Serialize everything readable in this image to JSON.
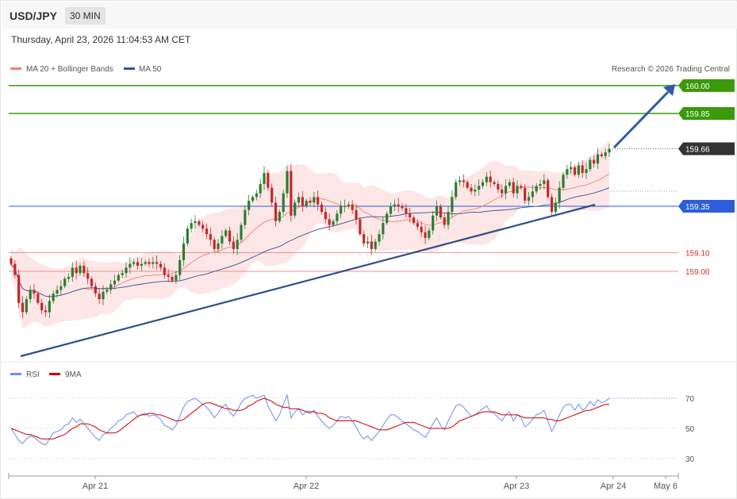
{
  "header": {
    "symbol": "USD/JPY",
    "timeframe": "30 MIN"
  },
  "timestamp": "Thursday, April 23, 2026 11:04:53 AM CET",
  "legend": {
    "ma20": {
      "label": "MA 20 + Bollinger Bands",
      "color": "#f08080"
    },
    "ma50": {
      "label": "MA 50",
      "color": "#2f5597"
    }
  },
  "copyright": "Research © 2026 Trading Central",
  "colors": {
    "up": "#2e7d32",
    "down": "#c62828",
    "target": "#3a9a0a",
    "pivot": "#2b5fd9",
    "support": "#e57373",
    "trend": "#2f4f8a"
  },
  "chart_data": [
    {
      "type": "candlestick",
      "title": "",
      "ylim": [
        158.8,
        160.05
      ],
      "x_ticks": [
        "Apr 21",
        "Apr 22",
        "Apr 23",
        "Apr 24",
        "May 6"
      ],
      "levels": [
        {
          "value": 160.0,
          "label": "160.00",
          "kind": "target"
        },
        {
          "value": 159.85,
          "label": "159.85",
          "kind": "target"
        },
        {
          "value": 159.66,
          "label": "159.66",
          "kind": "last"
        },
        {
          "value": 159.35,
          "label": "159.35",
          "kind": "pivot"
        },
        {
          "value": 159.1,
          "label": "159.10",
          "kind": "support"
        },
        {
          "value": 159.0,
          "label": "159.00",
          "kind": "support"
        }
      ],
      "close": [
        159.04,
        158.98,
        158.83,
        158.78,
        158.85,
        158.9,
        158.88,
        158.83,
        158.79,
        158.78,
        158.84,
        158.88,
        158.9,
        158.92,
        158.96,
        158.97,
        159.02,
        158.99,
        159.03,
        158.99,
        158.96,
        158.92,
        158.88,
        158.85,
        158.89,
        158.9,
        158.93,
        158.95,
        158.98,
        158.99,
        159.02,
        159.04,
        159.05,
        159.03,
        159.04,
        159.05,
        159.04,
        159.05,
        159.04,
        159.02,
        158.98,
        158.97,
        158.95,
        158.98,
        159.06,
        159.15,
        159.23,
        159.26,
        159.27,
        159.25,
        159.23,
        159.2,
        159.17,
        159.12,
        159.15,
        159.19,
        159.22,
        159.16,
        159.12,
        159.17,
        159.25,
        159.33,
        159.38,
        159.4,
        159.42,
        159.47,
        159.53,
        159.45,
        159.37,
        159.27,
        159.32,
        159.42,
        159.54,
        159.3,
        159.37,
        159.4,
        159.35,
        159.38,
        159.37,
        159.4,
        159.36,
        159.32,
        159.28,
        159.25,
        159.27,
        159.31,
        159.35,
        159.35,
        159.36,
        159.33,
        159.28,
        159.2,
        159.15,
        159.16,
        159.12,
        159.16,
        159.2,
        159.26,
        159.31,
        159.35,
        159.36,
        159.35,
        159.34,
        159.31,
        159.29,
        159.26,
        159.24,
        159.21,
        159.18,
        159.22,
        159.3,
        159.35,
        159.29,
        159.25,
        159.32,
        159.4,
        159.48,
        159.49,
        159.48,
        159.45,
        159.43,
        159.44,
        159.46,
        159.48,
        159.51,
        159.48,
        159.47,
        159.44,
        159.42,
        159.46,
        159.48,
        159.42,
        159.46,
        159.45,
        159.38,
        159.4,
        159.43,
        159.46,
        159.47,
        159.49,
        159.4,
        159.32,
        159.37,
        159.45,
        159.52,
        159.55,
        159.56,
        159.52,
        159.57,
        159.53,
        159.55,
        159.6,
        159.58,
        159.63,
        159.62,
        159.64,
        159.66
      ],
      "series": [
        {
          "name": "RSI",
          "color": "#6f8fe8",
          "ylim": [
            25,
            75
          ],
          "ticks": [
            70,
            50,
            30
          ],
          "values": [
            50,
            46,
            42,
            40,
            43,
            45,
            44,
            42,
            40,
            39,
            43,
            47,
            48,
            49,
            52,
            53,
            57,
            54,
            56,
            53,
            50,
            47,
            44,
            42,
            46,
            47,
            50,
            52,
            55,
            56,
            59,
            60,
            61,
            58,
            59,
            60,
            58,
            59,
            58,
            56,
            52,
            51,
            49,
            52,
            58,
            64,
            68,
            69,
            70,
            68,
            66,
            64,
            61,
            57,
            60,
            64,
            66,
            61,
            58,
            62,
            67,
            70,
            71,
            72,
            70,
            71,
            72,
            65,
            60,
            55,
            59,
            66,
            72,
            57,
            61,
            63,
            59,
            61,
            60,
            62,
            58,
            55,
            52,
            50,
            52,
            55,
            58,
            57,
            58,
            55,
            51,
            46,
            43,
            45,
            42,
            45,
            48,
            52,
            56,
            59,
            59,
            57,
            55,
            53,
            51,
            49,
            48,
            46,
            44,
            48,
            53,
            57,
            52,
            49,
            55,
            60,
            65,
            66,
            64,
            61,
            58,
            59,
            61,
            63,
            65,
            61,
            60,
            57,
            55,
            59,
            61,
            55,
            59,
            57,
            51,
            53,
            56,
            59,
            60,
            62,
            55,
            48,
            53,
            59,
            64,
            66,
            66,
            62,
            66,
            62,
            64,
            68,
            65,
            69,
            67,
            68,
            70
          ]
        },
        {
          "name": "9MA",
          "color": "#cc0000",
          "ylim": [
            25,
            75
          ],
          "values": [
            50,
            49,
            48,
            47,
            46,
            46,
            45,
            44,
            43,
            43,
            43,
            43,
            44,
            45,
            46,
            48,
            50,
            51,
            53,
            53,
            53,
            52,
            51,
            49,
            48,
            47,
            47,
            47,
            48,
            50,
            52,
            54,
            56,
            58,
            59,
            59,
            60,
            60,
            59,
            59,
            58,
            57,
            56,
            55,
            55,
            56,
            58,
            60,
            62,
            64,
            66,
            67,
            67,
            66,
            65,
            64,
            63,
            63,
            62,
            62,
            62,
            63,
            65,
            66,
            68,
            69,
            70,
            69,
            68,
            66,
            65,
            64,
            64,
            63,
            63,
            63,
            62,
            61,
            61,
            61,
            60,
            60,
            59,
            57,
            56,
            55,
            55,
            55,
            55,
            55,
            55,
            54,
            53,
            52,
            51,
            50,
            49,
            49,
            49,
            50,
            51,
            52,
            53,
            54,
            54,
            54,
            53,
            52,
            51,
            50,
            50,
            50,
            50,
            50,
            50,
            51,
            53,
            55,
            56,
            57,
            58,
            59,
            60,
            61,
            61,
            61,
            61,
            60,
            59,
            59,
            59,
            59,
            59,
            58,
            57,
            57,
            57,
            57,
            57,
            57,
            56,
            56,
            55,
            55,
            56,
            57,
            58,
            59,
            60,
            61,
            62,
            62,
            63,
            64,
            65,
            66,
            66
          ]
        }
      ]
    }
  ]
}
